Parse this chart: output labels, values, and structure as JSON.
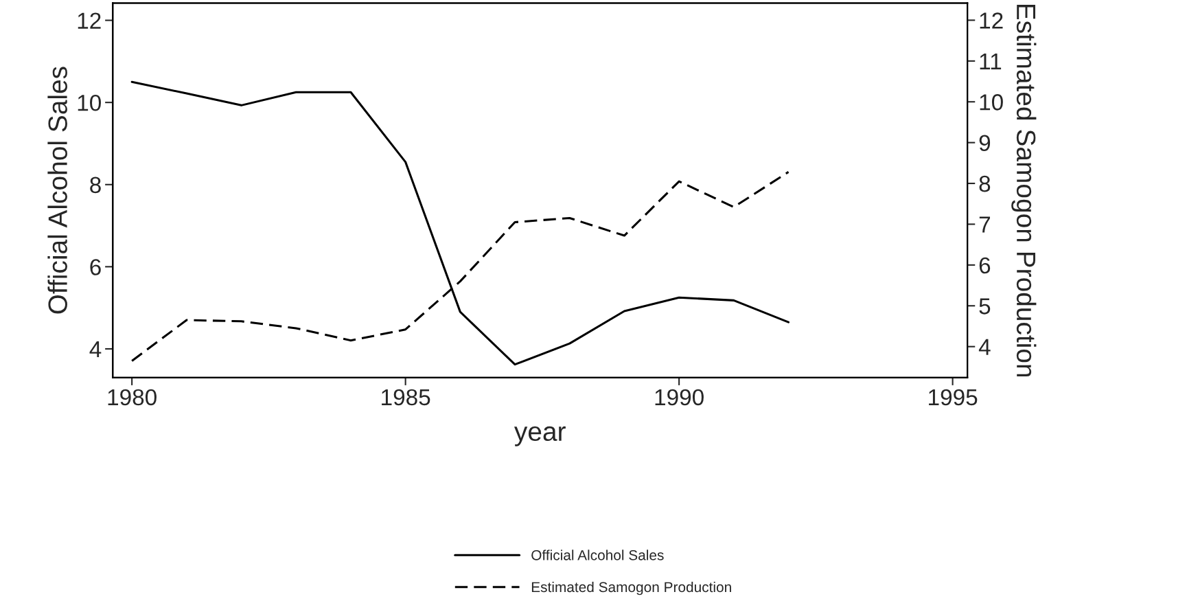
{
  "chart_data": {
    "type": "line",
    "xlabel": "year",
    "ylabel": "Official Alcohol Sales",
    "y2label": "Estimated Samogon Production",
    "x": [
      1980,
      1981,
      1982,
      1983,
      1984,
      1985,
      1986,
      1987,
      1988,
      1989,
      1990,
      1991,
      1992
    ],
    "series": [
      {
        "name": "Official Alcohol Sales",
        "color": "#000000",
        "line_style": "solid",
        "values": [
          10.5,
          10.22,
          9.93,
          10.25,
          10.25,
          8.55,
          4.9,
          3.62,
          4.13,
          4.92,
          5.25,
          5.18,
          4.65
        ]
      },
      {
        "name": "Estimated Samogon Production",
        "color": "#000000",
        "line_style": "dashed",
        "axis": "y2",
        "values": [
          3.65,
          4.65,
          4.62,
          4.45,
          4.15,
          4.42,
          5.6,
          7.05,
          7.15,
          6.72,
          8.05,
          7.42,
          8.28
        ]
      }
    ],
    "xlim": [
      1979.65,
      1995.27
    ],
    "xticks": [
      1980,
      1985,
      1990,
      1995
    ],
    "ylim": [
      3.3,
      12.42
    ],
    "yticks": [
      4,
      6,
      8,
      10,
      12
    ],
    "y2lim": [
      3.24,
      12.42
    ],
    "y2ticks": [
      4,
      5,
      6,
      7,
      8,
      9,
      10,
      11,
      12
    ],
    "grid": false,
    "legend": "bottom",
    "marker": "none"
  }
}
